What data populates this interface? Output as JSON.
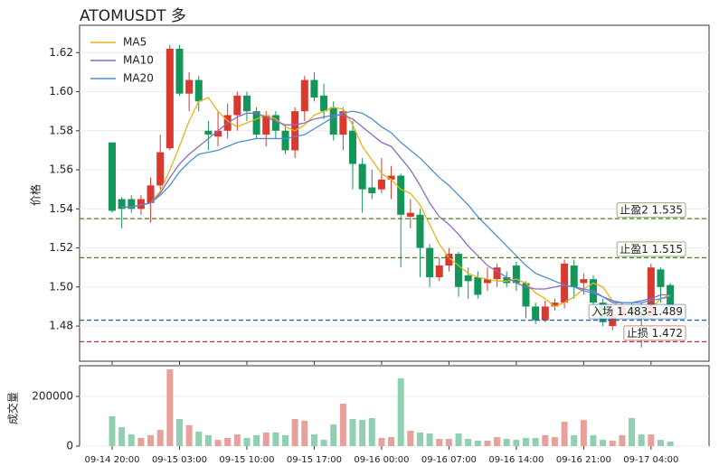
{
  "chart_data": [
    {
      "type": "candlestick",
      "title": "ATOMUSDT  多",
      "ylabel": "价格",
      "ylim": [
        1.462,
        1.634
      ],
      "yticks": [
        1.48,
        {
          "value": 1.5,
          "label": "1.50"
        },
        1.52,
        1.54,
        1.56,
        1.58,
        {
          "value": 1.6,
          "label": "1.60"
        },
        1.62
      ],
      "grid": true,
      "legend": "upper left",
      "up_color": "#d9392f",
      "down_color": "#12965a",
      "open": [
        1.574,
        1.545,
        1.545,
        1.54,
        1.543,
        1.552,
        1.571,
        1.622,
        1.599,
        1.606,
        1.58,
        1.577,
        1.58,
        1.588,
        1.598,
        1.59,
        1.578,
        1.588,
        1.58,
        1.57,
        1.59,
        1.606,
        1.598,
        1.592,
        1.578,
        1.58,
        1.563,
        1.551,
        1.55,
        1.555,
        1.557,
        1.536,
        1.537,
        1.52,
        1.505,
        1.511,
        1.517,
        1.506,
        1.505,
        1.502,
        1.504,
        1.505,
        1.511,
        1.502,
        1.49,
        1.483,
        1.49,
        1.492,
        1.511,
        1.502,
        1.504,
        1.492,
        1.48,
        1.486,
        1.49,
        1.487,
        1.485,
        1.509,
        1.501
      ],
      "high": [
        1.574,
        1.546,
        1.547,
        1.547,
        1.556,
        1.578,
        1.624,
        1.624,
        1.61,
        1.608,
        1.585,
        1.59,
        1.594,
        1.6,
        1.6,
        1.592,
        1.59,
        1.59,
        1.583,
        1.592,
        1.608,
        1.61,
        1.604,
        1.595,
        1.592,
        1.585,
        1.566,
        1.56,
        1.566,
        1.562,
        1.558,
        1.545,
        1.54,
        1.522,
        1.515,
        1.52,
        1.518,
        1.51,
        1.508,
        1.51,
        1.512,
        1.508,
        1.513,
        1.503,
        1.492,
        1.493,
        1.494,
        1.514,
        1.514,
        1.507,
        1.506,
        1.494,
        1.49,
        1.492,
        1.492,
        1.492,
        1.512,
        1.51,
        1.502
      ],
      "low": [
        1.538,
        1.53,
        1.538,
        1.537,
        1.533,
        1.55,
        1.57,
        1.598,
        1.59,
        1.59,
        1.57,
        1.572,
        1.576,
        1.58,
        1.585,
        1.576,
        1.572,
        1.576,
        1.568,
        1.566,
        1.585,
        1.595,
        1.586,
        1.575,
        1.57,
        1.55,
        1.538,
        1.545,
        1.548,
        1.545,
        1.51,
        1.53,
        1.505,
        1.5,
        1.503,
        1.508,
        1.495,
        1.494,
        1.494,
        1.498,
        1.5,
        1.5,
        1.498,
        1.484,
        1.481,
        1.482,
        1.488,
        1.489,
        1.494,
        1.496,
        1.49,
        1.48,
        1.478,
        1.484,
        1.484,
        1.469,
        1.483,
        1.492,
        1.487
      ],
      "close": [
        1.539,
        1.54,
        1.54,
        1.545,
        1.552,
        1.569,
        1.622,
        1.599,
        1.606,
        1.595,
        1.578,
        1.58,
        1.588,
        1.598,
        1.59,
        1.578,
        1.588,
        1.58,
        1.57,
        1.59,
        1.606,
        1.597,
        1.59,
        1.578,
        1.59,
        1.563,
        1.55,
        1.548,
        1.555,
        1.557,
        1.537,
        1.538,
        1.52,
        1.505,
        1.511,
        1.517,
        1.5,
        1.503,
        1.496,
        1.504,
        1.51,
        1.502,
        1.502,
        1.49,
        1.483,
        1.49,
        1.492,
        1.512,
        1.5,
        1.504,
        1.492,
        1.482,
        1.486,
        1.49,
        1.486,
        1.484,
        1.51,
        1.5,
        1.49
      ],
      "series": [
        {
          "name": "MA5",
          "color": "#e6b417",
          "values": [
            null,
            1.541,
            1.541,
            1.542,
            1.543,
            1.549,
            1.56,
            1.572,
            1.585,
            1.595,
            1.597,
            1.59,
            1.585,
            1.582,
            1.584,
            1.586,
            1.588,
            1.586,
            1.582,
            1.58,
            1.583,
            1.588,
            1.59,
            1.592,
            1.591,
            1.583,
            1.572,
            1.565,
            1.558,
            1.555,
            1.55,
            1.548,
            1.542,
            1.532,
            1.522,
            1.515,
            1.511,
            1.507,
            1.505,
            1.504,
            1.503,
            1.503,
            1.504,
            1.502,
            1.497,
            1.494,
            1.49,
            1.492,
            1.495,
            1.499,
            1.502,
            1.5,
            1.493,
            1.488,
            1.486,
            1.486,
            1.489,
            1.494,
            1.496
          ]
        },
        {
          "name": "MA10",
          "color": "#8a6cc4",
          "values": [
            null,
            1.541,
            1.541,
            1.542,
            1.543,
            1.548,
            1.556,
            1.563,
            1.568,
            1.572,
            1.576,
            1.58,
            1.584,
            1.587,
            1.589,
            1.589,
            1.587,
            1.585,
            1.583,
            1.583,
            1.584,
            1.586,
            1.587,
            1.588,
            1.588,
            1.586,
            1.582,
            1.578,
            1.574,
            1.572,
            1.566,
            1.56,
            1.552,
            1.543,
            1.536,
            1.532,
            1.527,
            1.521,
            1.516,
            1.511,
            1.508,
            1.505,
            1.502,
            1.5,
            1.499,
            1.499,
            1.5,
            1.501,
            1.5,
            1.499,
            1.498,
            1.495,
            1.492,
            1.492,
            1.492,
            1.493,
            1.494,
            1.496,
            1.496
          ]
        },
        {
          "name": "MA20",
          "color": "#4a8fd1",
          "values": [
            null,
            1.541,
            1.541,
            1.542,
            1.543,
            1.547,
            1.552,
            1.559,
            1.564,
            1.568,
            1.569,
            1.57,
            1.572,
            1.574,
            1.575,
            1.576,
            1.576,
            1.576,
            1.576,
            1.577,
            1.578,
            1.581,
            1.584,
            1.587,
            1.589,
            1.59,
            1.589,
            1.586,
            1.582,
            1.579,
            1.574,
            1.57,
            1.566,
            1.561,
            1.556,
            1.552,
            1.547,
            1.542,
            1.536,
            1.531,
            1.526,
            1.521,
            1.516,
            1.511,
            1.507,
            1.505,
            1.503,
            1.501,
            1.5,
            1.498,
            1.497,
            1.495,
            1.493,
            1.492,
            1.492,
            1.492,
            1.493,
            1.494,
            1.495
          ]
        }
      ],
      "levels": [
        {
          "label": "止盈2 1.535",
          "value": 1.535,
          "color": "#4f7a25"
        },
        {
          "label": "止盈1 1.515",
          "value": 1.515,
          "color": "#4f7a25"
        },
        {
          "label": "入场 1.483-1.489",
          "value": 1.483,
          "color": "#2f65a6"
        },
        {
          "label": "止损 1.472",
          "value": 1.472,
          "color": "#b33a3a"
        }
      ]
    },
    {
      "type": "bar",
      "ylabel": "成交量",
      "ylim": [
        0,
        323600
      ],
      "yticks": [
        0,
        200000
      ],
      "grid": true,
      "up_color": "#e8a09b",
      "down_color": "#90cfb0",
      "categories": [
        "09-14 20:00",
        null,
        null,
        null,
        null,
        null,
        null,
        "09-15 03:00",
        null,
        null,
        null,
        null,
        null,
        null,
        "09-15 10:00",
        null,
        null,
        null,
        null,
        null,
        null,
        "09-15 17:00",
        null,
        null,
        null,
        null,
        null,
        null,
        "09-16 00:00",
        null,
        null,
        null,
        null,
        null,
        null,
        "09-16 07:00",
        null,
        null,
        null,
        null,
        null,
        null,
        "09-16 14:00",
        null,
        null,
        null,
        null,
        null,
        null,
        "09-16 21:00",
        null,
        null,
        null,
        null,
        null,
        null,
        "09-17 04:00",
        null,
        null
      ],
      "values": [
        120000,
        76000,
        47000,
        33000,
        44000,
        65000,
        309000,
        109000,
        84000,
        58000,
        44000,
        25000,
        33000,
        47000,
        33000,
        44000,
        55000,
        55000,
        44000,
        109000,
        102000,
        47000,
        25000,
        87000,
        171000,
        109000,
        105000,
        113000,
        33000,
        36000,
        273000,
        62000,
        55000,
        51000,
        29000,
        29000,
        51000,
        29000,
        22000,
        22000,
        36000,
        29000,
        25000,
        33000,
        33000,
        44000,
        36000,
        98000,
        44000,
        105000,
        44000,
        25000,
        22000,
        44000,
        113000,
        47000,
        47000,
        25000,
        18000
      ]
    }
  ]
}
